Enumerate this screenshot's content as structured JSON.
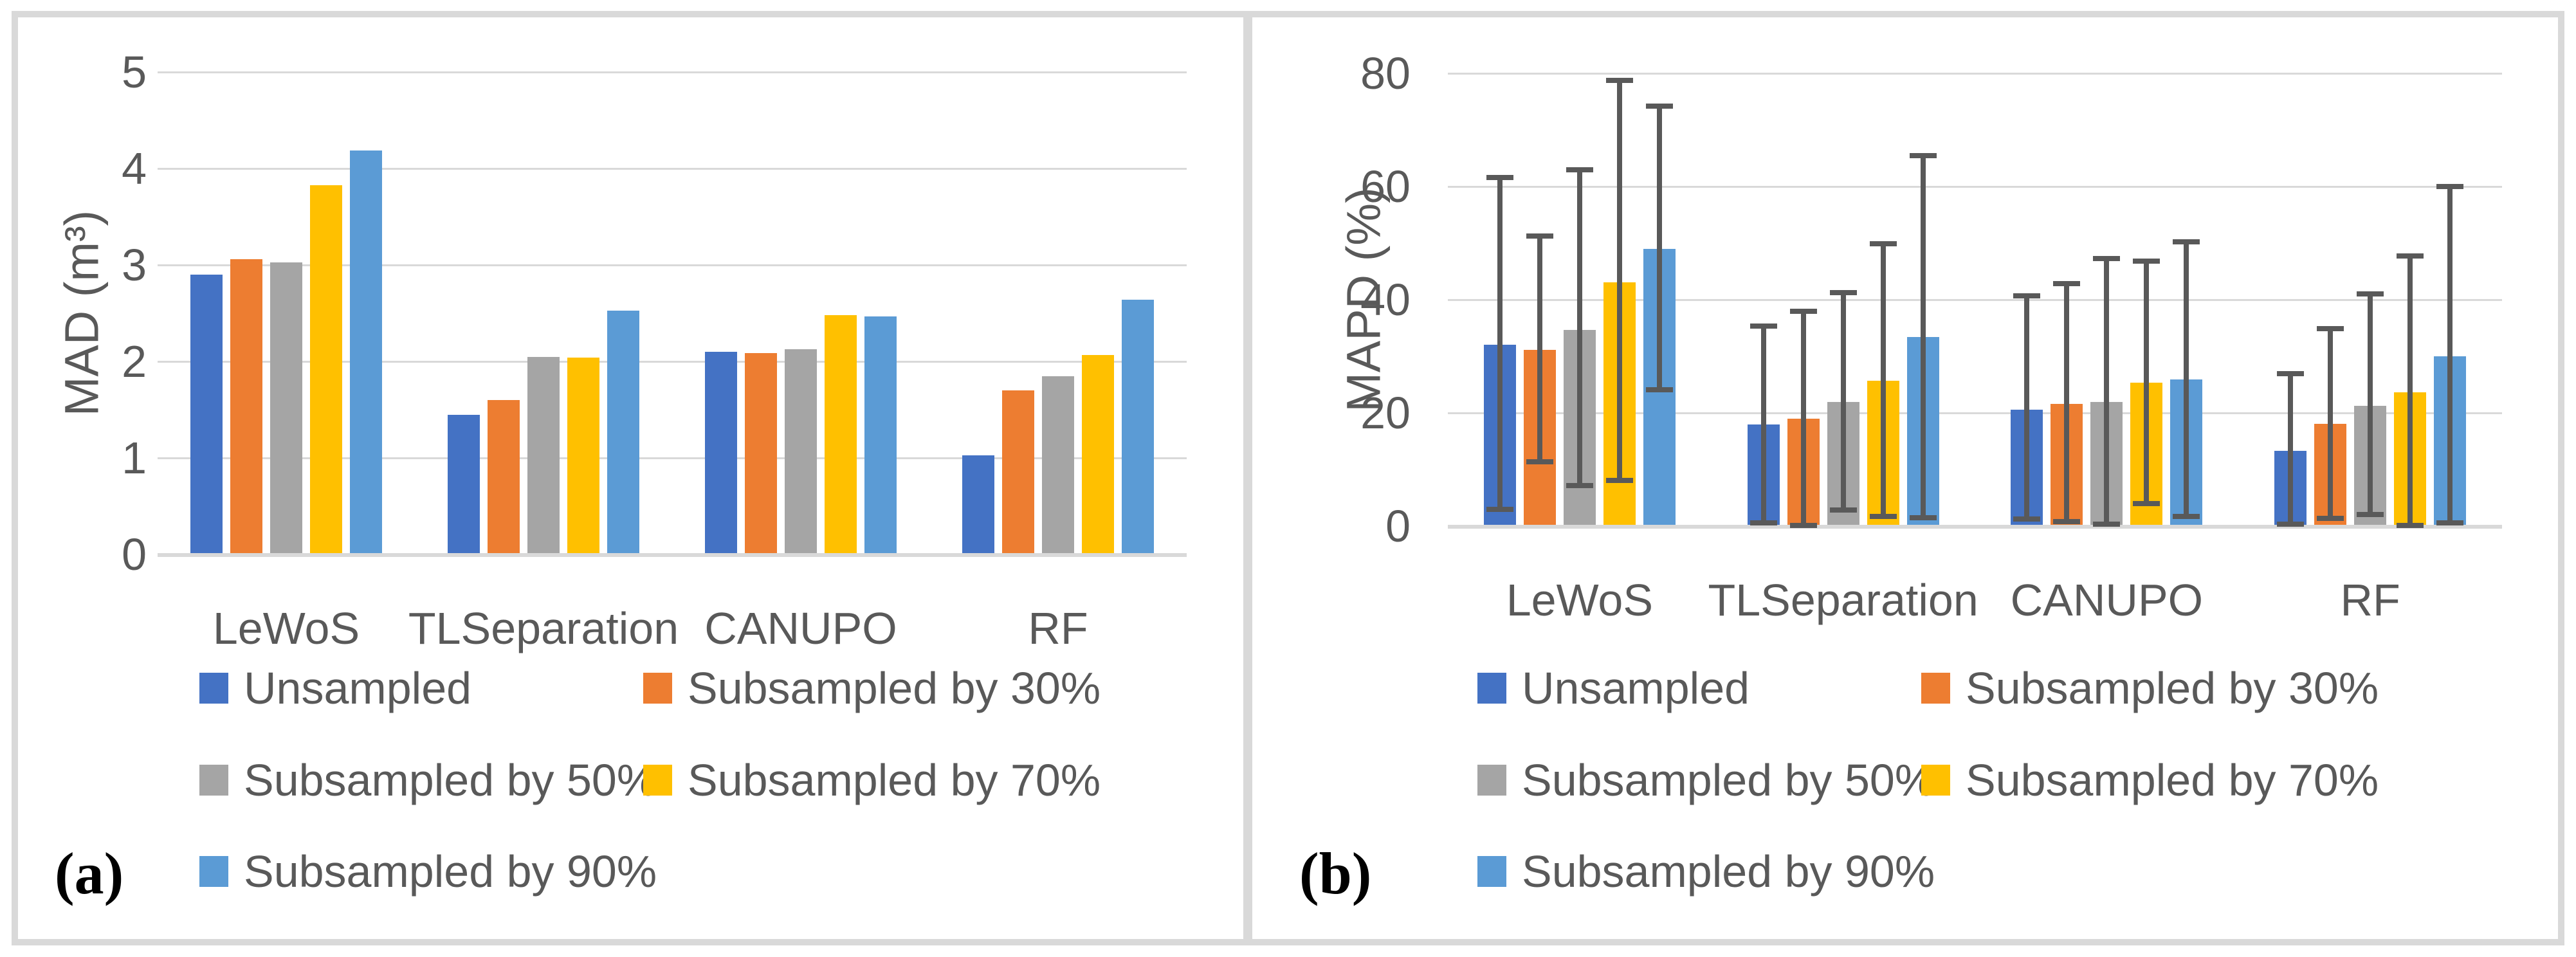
{
  "chart_data": [
    {
      "type": "bar",
      "panel_label": "(a)",
      "ylabel": "MAD (m³)",
      "ylim": [
        0,
        5
      ],
      "yticks": [
        0,
        1,
        2,
        3,
        4,
        5
      ],
      "grid": true,
      "legend_position": "below",
      "categories": [
        "LeWoS",
        "TLSeparation",
        "CANUPO",
        "RF"
      ],
      "series": [
        {
          "name": "Unsampled",
          "color": "#4472C4",
          "values": [
            2.9,
            1.45,
            2.1,
            1.03
          ]
        },
        {
          "name": "Subsampled by 30%",
          "color": "#ED7D31",
          "values": [
            3.06,
            1.6,
            2.09,
            1.7
          ]
        },
        {
          "name": "Subsampled by 50%",
          "color": "#A5A5A5",
          "values": [
            3.03,
            2.05,
            2.13,
            1.85
          ]
        },
        {
          "name": "Subsampled by 70%",
          "color": "#FFC000",
          "values": [
            3.83,
            2.04,
            2.48,
            2.07
          ]
        },
        {
          "name": "Subsampled by 90%",
          "color": "#5B9BD5",
          "values": [
            4.19,
            2.53,
            2.47,
            2.64
          ]
        }
      ],
      "legend_rows": [
        [
          "Unsampled",
          "Subsampled by 30%"
        ],
        [
          "Subsampled by 50%",
          "Subsampled by 70%"
        ],
        [
          "Subsampled by 90%"
        ]
      ]
    },
    {
      "type": "bar",
      "panel_label": "(b)",
      "ylabel": "MAPD (%)",
      "ylim": [
        0,
        80
      ],
      "yticks": [
        0,
        20,
        40,
        60,
        80
      ],
      "grid": true,
      "legend_position": "below",
      "error_bars": true,
      "categories": [
        "LeWoS",
        "TLSeparation",
        "CANUPO",
        "RF"
      ],
      "series": [
        {
          "name": "Unsampled",
          "color": "#4472C4",
          "values": [
            32.1,
            17.9,
            20.6,
            13.3
          ],
          "error_low": [
            2.9,
            0.6,
            1.2,
            0.3
          ],
          "error_high": [
            61.6,
            35.3,
            40.7,
            26.9
          ]
        },
        {
          "name": "Subsampled by 30%",
          "color": "#ED7D31",
          "values": [
            31.1,
            19.0,
            21.6,
            18.1
          ],
          "error_low": [
            11.4,
            0.1,
            0.8,
            1.4
          ],
          "error_high": [
            51.2,
            37.9,
            42.8,
            34.9
          ]
        },
        {
          "name": "Subsampled by 50%",
          "color": "#A5A5A5",
          "values": [
            34.7,
            21.9,
            21.9,
            21.3
          ],
          "error_low": [
            7.2,
            2.8,
            0.3,
            2.0
          ],
          "error_high": [
            62.9,
            41.2,
            47.3,
            41.0
          ]
        },
        {
          "name": "Subsampled by 70%",
          "color": "#FFC000",
          "values": [
            43.1,
            25.7,
            25.3,
            23.6
          ],
          "error_low": [
            8.1,
            1.7,
            4.0,
            0.1
          ],
          "error_high": [
            78.8,
            49.9,
            46.8,
            47.7
          ]
        },
        {
          "name": "Subsampled by 90%",
          "color": "#5B9BD5",
          "values": [
            49.0,
            33.4,
            25.9,
            30.0
          ],
          "error_low": [
            24.1,
            1.5,
            1.7,
            0.6
          ],
          "error_high": [
            74.2,
            65.4,
            50.2,
            60.0
          ]
        }
      ],
      "legend_rows": [
        [
          "Unsampled",
          "Subsampled by 30%"
        ],
        [
          "Subsampled by 50%",
          "Subsampled by 70%"
        ],
        [
          "Subsampled by 90%"
        ]
      ]
    }
  ],
  "colors": {
    "unsampled_blue": "#4472C4",
    "subsampled_30_orange": "#ED7D31",
    "subsampled_50_gray": "#A5A5A5",
    "subsampled_70_yellow": "#FFC000",
    "subsampled_90_lightblue": "#5B9BD5",
    "gridline_gray": "#D9D9D9",
    "text_gray": "#595959",
    "error_bar_gray": "#595959",
    "frame_gray": "#D9D9D9"
  }
}
